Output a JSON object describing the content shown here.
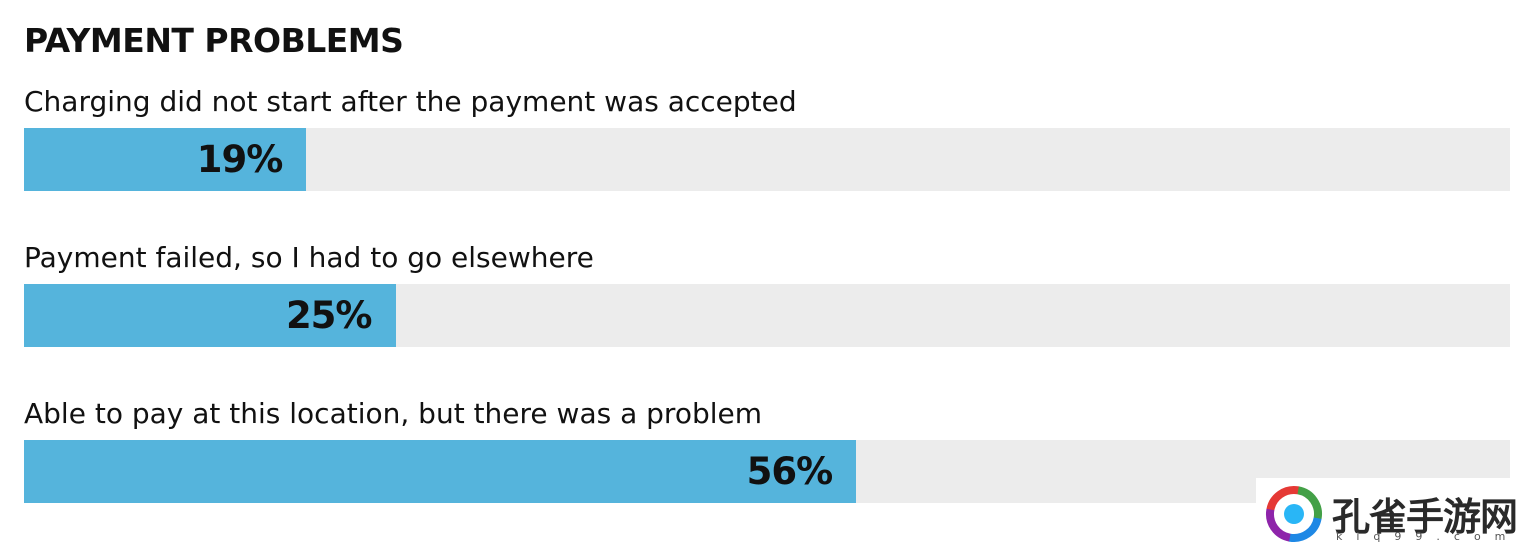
{
  "chart_data": {
    "type": "bar",
    "orientation": "horizontal",
    "title": "PAYMENT PROBLEMS",
    "categories": [
      "Charging did not start after the payment was accepted",
      "Payment failed, so I had to go elsewhere",
      "Able to pay at this location, but there was a problem"
    ],
    "values": [
      19,
      25,
      56
    ],
    "value_labels": [
      "19%",
      "25%",
      "56%"
    ],
    "unit": "%",
    "xlim": [
      0,
      100
    ],
    "grid": false,
    "bar_color": "#55b4dc",
    "track_color": "#ececec"
  },
  "watermark": {
    "text": "孔雀手游网",
    "subtext": "kiq99.com"
  }
}
